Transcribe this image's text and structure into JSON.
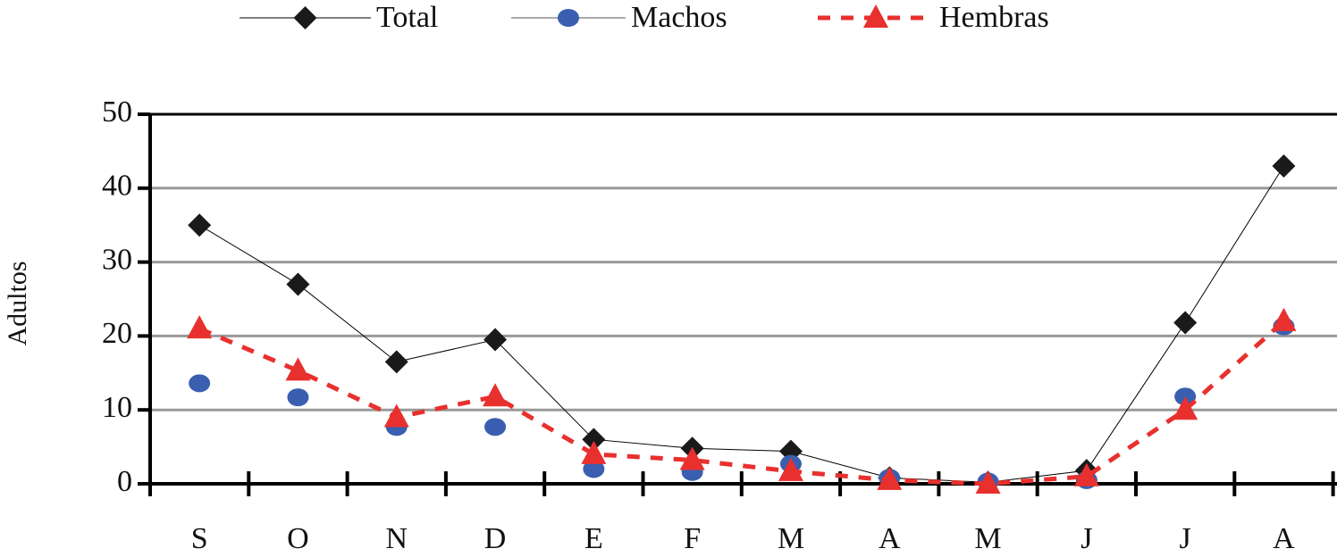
{
  "chart_data": {
    "type": "line",
    "y_label": "Adultos",
    "categories": [
      "S",
      "O",
      "N",
      "D",
      "E",
      "F",
      "M",
      "A",
      "M",
      "J",
      "J",
      "A"
    ],
    "series": [
      {
        "name": "Total",
        "color": "#000000",
        "marker_color": "#1a1a1a",
        "marker": "diamond",
        "line": "solid",
        "line_width": 1,
        "values": [
          35,
          27,
          16.5,
          19.5,
          6,
          4.8,
          4.4,
          0.8,
          0.2,
          1.8,
          21.8,
          43
        ]
      },
      {
        "name": "Machos",
        "color": "#555555",
        "marker_color": "#3a5fb0",
        "marker": "circle",
        "line": "none",
        "line_width": 1,
        "values": [
          13.6,
          11.7,
          7.7,
          7.7,
          2,
          1.6,
          2.7,
          0.8,
          0.3,
          0.5,
          11.8,
          21.3
        ]
      },
      {
        "name": "Hembras",
        "color": "#e8302e",
        "marker_color": "#e8302e",
        "marker": "triangle",
        "line": "dashed",
        "line_width": 5,
        "values": [
          21,
          15.3,
          9,
          11.8,
          4,
          3.2,
          1.7,
          0.5,
          0,
          1,
          10,
          22
        ]
      }
    ],
    "ylim": [
      0,
      50
    ],
    "yticks": [
      0,
      10,
      20,
      30,
      40,
      50
    ],
    "grid": true
  }
}
